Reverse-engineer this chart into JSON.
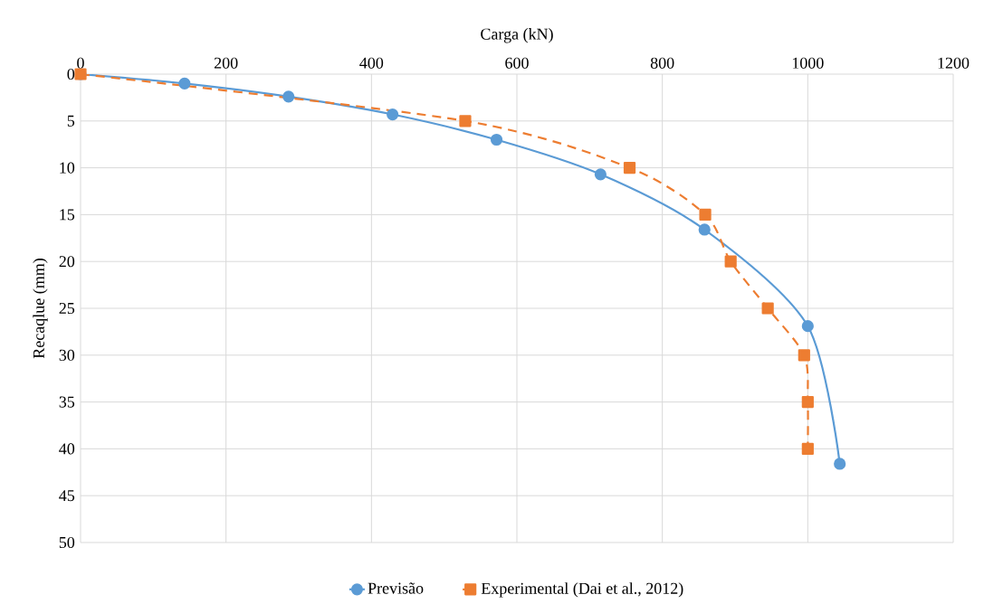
{
  "chart_data": {
    "type": "line",
    "xlabel": "Carga (kN)",
    "ylabel": "Recaqlue (mm)",
    "xlim": [
      0,
      1200
    ],
    "xticks": [
      0,
      200,
      400,
      600,
      800,
      1000,
      1200
    ],
    "ylim": [
      50,
      0
    ],
    "yticks": [
      0,
      5,
      10,
      15,
      20,
      25,
      30,
      35,
      40,
      45,
      50
    ],
    "grid": true,
    "legend": "bottom",
    "series": [
      {
        "name": "Previsão",
        "color": "#5b9bd5",
        "marker": "circle",
        "line_style": "solid",
        "x": [
          0,
          143,
          286,
          429,
          572,
          715,
          858,
          1000,
          1044
        ],
        "values": [
          0,
          1.0,
          2.4,
          4.3,
          7.0,
          10.7,
          16.6,
          26.9,
          41.6
        ]
      },
      {
        "name": "Experimental (Dai et al., 2012)",
        "color": "#ed7d31",
        "marker": "square",
        "line_style": "dashed",
        "x": [
          0,
          529,
          755,
          859,
          894,
          945,
          995,
          1000,
          1000
        ],
        "values": [
          0,
          5,
          10,
          15,
          20,
          25,
          30,
          35,
          40
        ]
      }
    ]
  }
}
